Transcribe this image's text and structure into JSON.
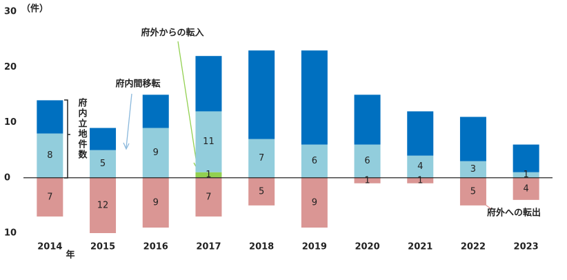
{
  "chart_data": {
    "type": "bar",
    "stacked": true,
    "unit": "（件）",
    "x_label": "年",
    "bracket_label": "府内立地件数",
    "categories": [
      "2014",
      "2015",
      "2016",
      "2017",
      "2018",
      "2019",
      "2020",
      "2021",
      "2022",
      "2023"
    ],
    "series": [
      {
        "name": "府外からの転入",
        "color": "#92D050",
        "label_color": "#333333",
        "show_labels": true,
        "values": [
          null,
          null,
          null,
          1,
          null,
          null,
          null,
          null,
          null,
          null
        ]
      },
      {
        "name": "府内間移転",
        "color": "#92CDDC",
        "label_color": "#333333",
        "show_labels": true,
        "values": [
          8,
          5,
          9,
          11,
          7,
          6,
          6,
          4,
          3,
          1
        ]
      },
      {
        "color": "#0070C0",
        "show_labels": false,
        "values": [
          6,
          4,
          6,
          10,
          16,
          17,
          9,
          8,
          8,
          5
        ]
      },
      {
        "name": "府外への転出",
        "color": "#DA9694",
        "label_color": "#ffffff",
        "show_labels": true,
        "values": [
          -7,
          -12,
          -9,
          -7,
          -5,
          -9,
          -1,
          -1,
          -5,
          -4
        ],
        "value_labels": [
          "7",
          "12",
          "9",
          "7",
          "5",
          "9",
          "1",
          "1",
          "5",
          "4"
        ]
      }
    ],
    "ylim": [
      -10,
      30
    ],
    "yticks": [
      {
        "value": -10,
        "label": "10"
      },
      0,
      10,
      20,
      30
    ],
    "grid": false
  }
}
